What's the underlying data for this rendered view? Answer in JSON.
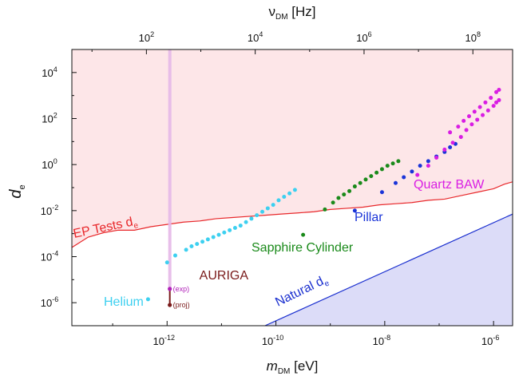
{
  "chart_data": {
    "type": "scatter",
    "x_scale": "log",
    "y_scale": "log",
    "xlim_log10": [
      -13.75,
      -5.65
    ],
    "ylim_log10": [
      -7,
      5
    ],
    "top_axis": {
      "label_main": "ν",
      "label_sub": "DM",
      "label_unit": " [Hz]",
      "ticks": [
        {
          "exp": 2,
          "text": "10",
          "sup": "2"
        },
        {
          "exp": 4,
          "text": "10",
          "sup": "4"
        },
        {
          "exp": 6,
          "text": "10",
          "sup": "6"
        },
        {
          "exp": 8,
          "text": "10",
          "sup": "8"
        }
      ]
    },
    "x_axis": {
      "label_main": "m",
      "label_sub": "DM",
      "label_unit": " [eV]",
      "ticks": [
        {
          "exp": -12,
          "text": "10",
          "sup": "-12"
        },
        {
          "exp": -10,
          "text": "10",
          "sup": "-10"
        },
        {
          "exp": -8,
          "text": "10",
          "sup": "-8"
        },
        {
          "exp": -6,
          "text": "10",
          "sup": "-6"
        }
      ]
    },
    "y_axis": {
      "label_main": "d",
      "label_sub": "e",
      "ticks": [
        {
          "exp": 4,
          "text": "10",
          "sup": "4"
        },
        {
          "exp": 2,
          "text": "10",
          "sup": "2"
        },
        {
          "exp": 0,
          "text": "10",
          "sup": "0"
        },
        {
          "exp": -2,
          "text": "10",
          "sup": "-2"
        },
        {
          "exp": -4,
          "text": "10",
          "sup": "-4"
        },
        {
          "exp": -6,
          "text": "10",
          "sup": "-6"
        }
      ]
    },
    "regions": {
      "ep_tests": {
        "label": "EP Tests d",
        "label_sub": "e",
        "color": "#e8282b",
        "fill": "#fde6e8",
        "boundary": [
          [
            -13.75,
            -3.6
          ],
          [
            -13.45,
            -3.15
          ],
          [
            -13.15,
            -2.95
          ],
          [
            -12.9,
            -2.85
          ],
          [
            -12.6,
            -2.85
          ],
          [
            -12.3,
            -2.7
          ],
          [
            -12.0,
            -2.6
          ],
          [
            -11.7,
            -2.5
          ],
          [
            -11.4,
            -2.45
          ],
          [
            -11.1,
            -2.35
          ],
          [
            -10.8,
            -2.3
          ],
          [
            -10.5,
            -2.25
          ],
          [
            -10.2,
            -2.2
          ],
          [
            -9.9,
            -2.15
          ],
          [
            -9.6,
            -2.1
          ],
          [
            -9.3,
            -2.05
          ],
          [
            -9.0,
            -1.95
          ],
          [
            -8.7,
            -1.9
          ],
          [
            -8.4,
            -1.85
          ],
          [
            -8.1,
            -1.75
          ],
          [
            -7.8,
            -1.7
          ],
          [
            -7.5,
            -1.65
          ],
          [
            -7.2,
            -1.55
          ],
          [
            -6.9,
            -1.5
          ],
          [
            -6.6,
            -1.35
          ],
          [
            -6.3,
            -1.2
          ],
          [
            -6.0,
            -1.05
          ],
          [
            -5.8,
            -0.85
          ],
          [
            -5.65,
            -0.75
          ]
        ]
      },
      "natural": {
        "label": "Natural d",
        "label_sub": "e",
        "color": "#1a2fcf",
        "fill": "#dcdcf8",
        "boundary": [
          [
            -10.2,
            -7
          ],
          [
            -5.65,
            -2.15
          ]
        ]
      }
    },
    "series": [
      {
        "name": "Helium",
        "color": "#3dd0f0",
        "points": [
          [
            -12.35,
            -5.85
          ],
          [
            -12.0,
            -4.25
          ],
          [
            -11.85,
            -3.95
          ],
          [
            -11.65,
            -3.7
          ],
          [
            -11.55,
            -3.55
          ],
          [
            -11.45,
            -3.45
          ],
          [
            -11.35,
            -3.35
          ],
          [
            -11.25,
            -3.25
          ],
          [
            -11.15,
            -3.15
          ],
          [
            -11.05,
            -3.05
          ],
          [
            -10.95,
            -2.95
          ],
          [
            -10.85,
            -2.85
          ],
          [
            -10.75,
            -2.75
          ],
          [
            -10.65,
            -2.65
          ],
          [
            -10.55,
            -2.5
          ],
          [
            -10.45,
            -2.35
          ],
          [
            -10.35,
            -2.2
          ],
          [
            -10.25,
            -2.05
          ],
          [
            -10.15,
            -1.9
          ],
          [
            -10.05,
            -1.75
          ],
          [
            -9.95,
            -1.55
          ],
          [
            -9.85,
            -1.4
          ],
          [
            -9.75,
            -1.25
          ],
          [
            -9.65,
            -1.1
          ]
        ]
      },
      {
        "name": "Sapphire Cylinder",
        "color": "#1a8a1a",
        "points": [
          [
            -9.5,
            -3.05
          ],
          [
            -9.1,
            -1.95
          ],
          [
            -8.95,
            -1.65
          ],
          [
            -8.85,
            -1.45
          ],
          [
            -8.75,
            -1.3
          ],
          [
            -8.65,
            -1.15
          ],
          [
            -8.55,
            -0.95
          ],
          [
            -8.45,
            -0.8
          ],
          [
            -8.35,
            -0.65
          ],
          [
            -8.25,
            -0.5
          ],
          [
            -8.15,
            -0.35
          ],
          [
            -8.05,
            -0.2
          ],
          [
            -7.95,
            -0.05
          ],
          [
            -7.85,
            0.05
          ],
          [
            -7.75,
            0.15
          ]
        ]
      },
      {
        "name": "Pillar",
        "color": "#1a34d8",
        "points": [
          [
            -8.55,
            -2.0
          ],
          [
            -8.05,
            -1.2
          ],
          [
            -7.8,
            -0.8
          ],
          [
            -7.65,
            -0.55
          ],
          [
            -7.5,
            -0.3
          ],
          [
            -7.35,
            -0.05
          ],
          [
            -7.2,
            0.15
          ],
          [
            -7.05,
            0.35
          ],
          [
            -6.9,
            0.55
          ],
          [
            -6.8,
            0.75
          ],
          [
            -6.7,
            0.9
          ]
        ]
      },
      {
        "name": "Quartz BAW",
        "color": "#d91ee3",
        "points": [
          [
            -7.4,
            -0.45
          ],
          [
            -7.2,
            -0.05
          ],
          [
            -7.05,
            0.3
          ],
          [
            -6.9,
            0.65
          ],
          [
            -6.75,
            0.95
          ],
          [
            -6.6,
            1.2
          ],
          [
            -6.5,
            1.5
          ],
          [
            -6.4,
            1.75
          ],
          [
            -6.3,
            1.95
          ],
          [
            -6.2,
            2.15
          ],
          [
            -6.1,
            2.35
          ],
          [
            -6.0,
            2.55
          ],
          [
            -5.95,
            2.7
          ],
          [
            -5.9,
            2.8
          ],
          [
            -6.55,
            1.9
          ],
          [
            -6.45,
            2.1
          ],
          [
            -6.35,
            2.3
          ],
          [
            -6.25,
            2.5
          ],
          [
            -6.15,
            2.7
          ],
          [
            -6.05,
            2.9
          ],
          [
            -5.95,
            3.15
          ],
          [
            -5.9,
            3.25
          ],
          [
            -6.65,
            1.65
          ],
          [
            -6.8,
            1.4
          ]
        ]
      }
    ],
    "auriga": {
      "label": "AURIGA",
      "color": "#7a1a1a",
      "band_color": "#e6b8e8",
      "x_log10": -11.95,
      "exp_label": "(exp)",
      "exp_color": "#b020b8",
      "proj_label": "(proj)",
      "proj_color": "#7a1a1a",
      "exp_y": -5.4,
      "proj_y": -6.1
    },
    "labels": {
      "helium": {
        "text": "Helium",
        "color": "#3dd0f0"
      },
      "sapphire": {
        "text": "Sapphire Cylinder",
        "color": "#1a8a1a"
      },
      "pillar": {
        "text": "Pillar",
        "color": "#1a34d8"
      },
      "quartz": {
        "text": "Quartz BAW",
        "color": "#d91ee3"
      }
    }
  }
}
